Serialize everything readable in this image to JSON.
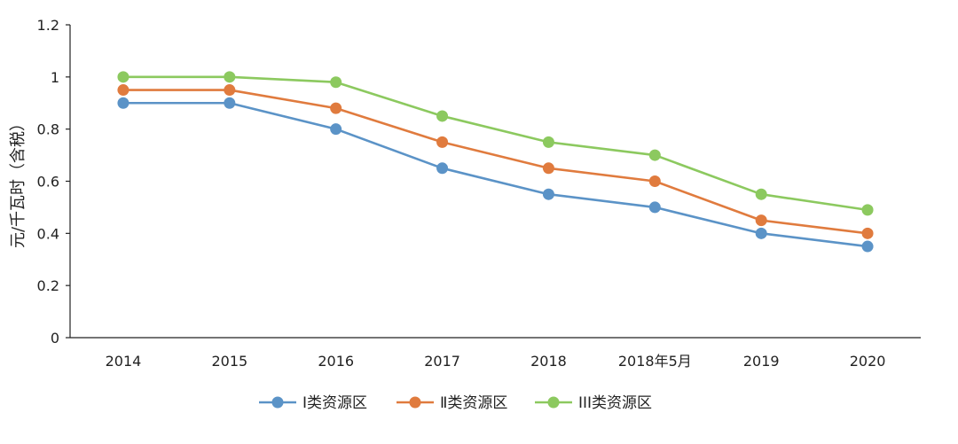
{
  "chart_data": {
    "type": "line",
    "title": "",
    "xlabel": "",
    "ylabel": "元/千瓦时（含税）",
    "categories": [
      "2014",
      "2015",
      "2016",
      "2017",
      "2018",
      "2018年5月",
      "2019",
      "2020"
    ],
    "ylim": [
      0,
      1.2
    ],
    "yticks": [
      0,
      0.2,
      0.4,
      0.6,
      0.8,
      1,
      1.2
    ],
    "grid": false,
    "legend": "bottom",
    "series": [
      {
        "name": "Ⅰ类资源区",
        "color": "#5b93c7",
        "values": [
          0.9,
          0.9,
          0.8,
          0.65,
          0.55,
          0.5,
          0.4,
          0.35
        ]
      },
      {
        "name": "Ⅱ类资源区",
        "color": "#e07b3e",
        "values": [
          0.95,
          0.95,
          0.88,
          0.75,
          0.65,
          0.6,
          0.45,
          0.4
        ]
      },
      {
        "name": "III类资源区",
        "color": "#8cc95f",
        "values": [
          1,
          1,
          0.98,
          0.85,
          0.75,
          0.7,
          0.55,
          0.49
        ]
      }
    ]
  }
}
